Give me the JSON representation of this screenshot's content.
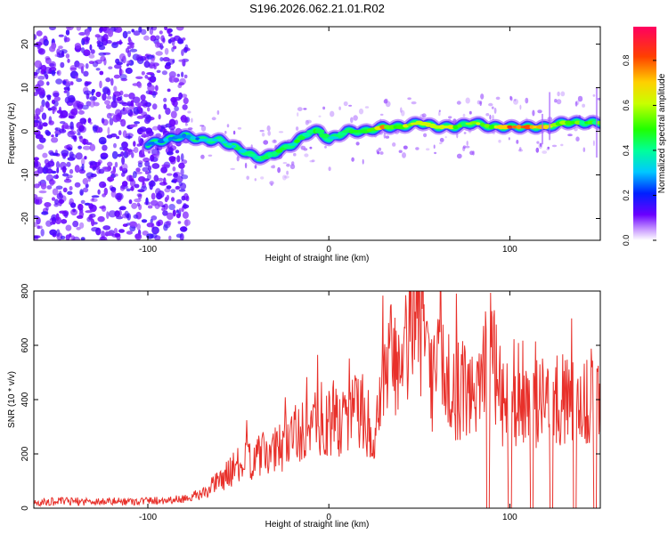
{
  "title": "S196.2026.062.21.01.R02",
  "chart_data": [
    {
      "type": "heatmap",
      "name": "spectrogram",
      "xlabel": "Height of straight line (km)",
      "ylabel": "Frequency (Hz)",
      "xlim": [
        -163,
        150
      ],
      "ylim": [
        -25,
        24
      ],
      "xticks": [
        -100,
        0,
        100
      ],
      "xtick_labels": [
        "-100",
        "0",
        "100"
      ],
      "yticks": [
        -20,
        -10,
        0,
        10,
        20
      ],
      "ytick_labels": [
        "-20",
        "-10",
        "0",
        "10",
        "20"
      ],
      "colorbar": {
        "label": "Normalized spectral amplitude",
        "range": [
          0,
          0.95
        ],
        "ticks": [
          0.0,
          0.2,
          0.4,
          0.6,
          0.8
        ],
        "tick_labels": [
          "0.0",
          "0.2",
          "0.4",
          "0.6",
          "0.8"
        ]
      },
      "ridge": {
        "x": [
          -100,
          -90,
          -80,
          -70,
          -60,
          -50,
          -40,
          -35,
          -30,
          -20,
          -10,
          -5,
          0,
          5,
          10,
          20,
          30,
          40,
          50,
          60,
          70,
          80,
          90,
          100,
          110,
          120,
          130,
          140,
          150
        ],
        "y": [
          -3,
          -2,
          -1,
          -2,
          -2,
          -4,
          -6,
          -6,
          -5,
          -3,
          0,
          0,
          -2,
          -1,
          0,
          0,
          1,
          1,
          2,
          1,
          1,
          2,
          1,
          1,
          1,
          1,
          2,
          2,
          2
        ],
        "amplitude": [
          0.3,
          0.35,
          0.3,
          0.35,
          0.45,
          0.45,
          0.5,
          0.45,
          0.5,
          0.5,
          0.55,
          0.6,
          0.45,
          0.5,
          0.55,
          0.6,
          0.85,
          0.6,
          0.75,
          0.8,
          0.65,
          0.6,
          0.7,
          0.9,
          0.95,
          0.7,
          0.6,
          0.55,
          0.6
        ]
      },
      "noise_region_x": [
        -163,
        -78
      ]
    },
    {
      "type": "line",
      "name": "snr",
      "xlabel": "Height of straight line (km)",
      "ylabel": "SNR (10 * v/v)",
      "xlim": [
        -163,
        150
      ],
      "ylim": [
        0,
        800
      ],
      "xticks": [
        -100,
        0,
        100
      ],
      "xtick_labels": [
        "-100",
        "0",
        "100"
      ],
      "yticks": [
        0,
        200,
        400,
        600,
        800
      ],
      "ytick_labels": [
        "0",
        "200",
        "400",
        "600",
        "800"
      ],
      "series": [
        {
          "name": "SNR",
          "color": "#e8302a",
          "x": [
            -163,
            -150,
            -130,
            -110,
            -90,
            -80,
            -70,
            -60,
            -50,
            -40,
            -30,
            -20,
            -10,
            0,
            10,
            20,
            25,
            30,
            35,
            40,
            48,
            55,
            60,
            70,
            80,
            88,
            95,
            100,
            110,
            120,
            130,
            140,
            150
          ],
          "values": [
            20,
            25,
            25,
            25,
            30,
            35,
            50,
            100,
            150,
            180,
            200,
            260,
            300,
            290,
            330,
            350,
            200,
            400,
            560,
            430,
            810,
            450,
            500,
            420,
            400,
            600,
            380,
            370,
            360,
            380,
            380,
            370,
            420
          ],
          "dropouts_x": [
            88,
            100,
            112,
            123,
            136,
            147
          ]
        }
      ]
    }
  ]
}
